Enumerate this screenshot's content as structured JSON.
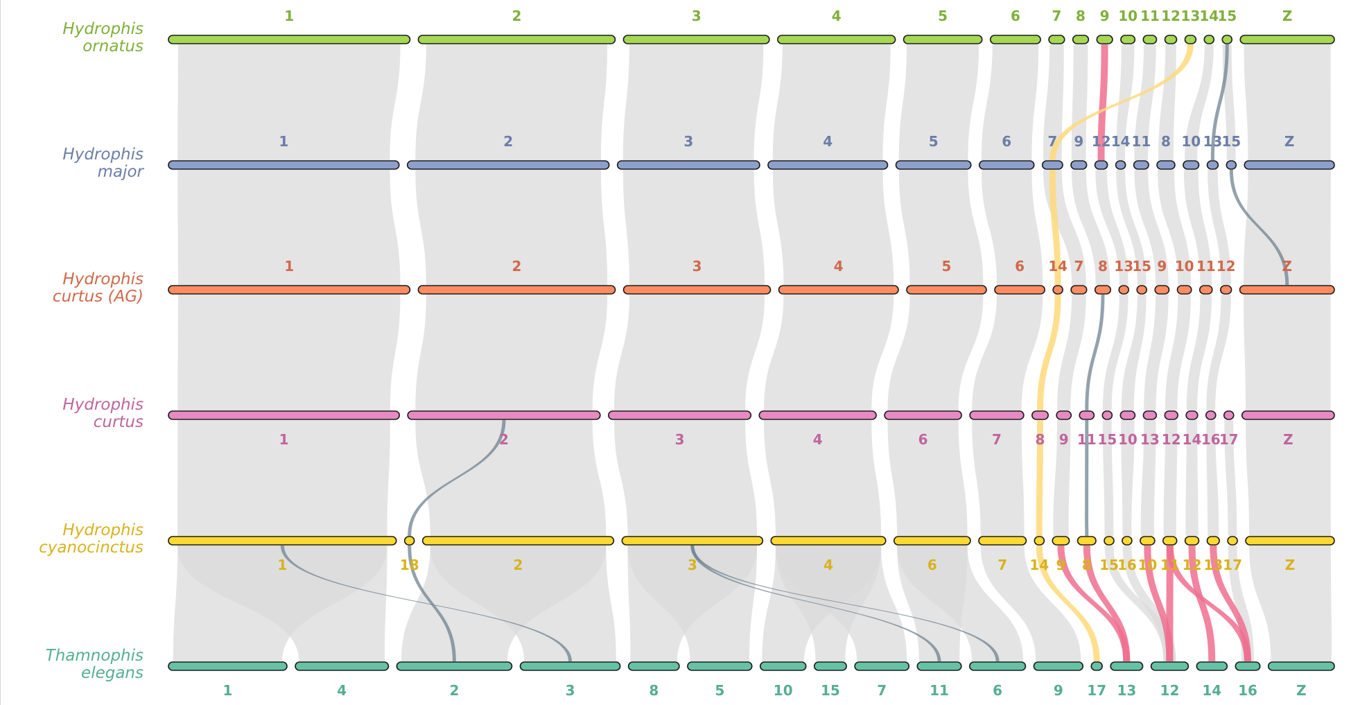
{
  "tracks": [
    {
      "species_line1": "Hydrophis",
      "species_line2": "ornatus",
      "color": "#a6d854",
      "label_color": "#7fb03a",
      "label_pos": "above",
      "chromosomes": [
        {
          "label": "1",
          "length": 30.8,
          "ctr": 0.5
        },
        {
          "label": "2",
          "length": 25.1,
          "ctr": 0.5
        },
        {
          "label": "3",
          "length": 18.6,
          "ctr": 0.5
        },
        {
          "label": "4",
          "length": 15.0,
          "ctr": 0.5
        },
        {
          "label": "5",
          "length": 10.0,
          "ctr": 0.5
        },
        {
          "label": "6",
          "length": 6.4,
          "ctr": 0.5
        },
        {
          "label": "7",
          "length": 2.0,
          "ctr": 0.5
        },
        {
          "label": "8",
          "length": 2.0,
          "ctr": 0.5
        },
        {
          "label": "9",
          "length": 2.0,
          "ctr": 0.5
        },
        {
          "label": "10",
          "length": 1.8,
          "ctr": 0.5
        },
        {
          "label": "11",
          "length": 1.7,
          "ctr": 0.5
        },
        {
          "label": "12",
          "length": 1.5,
          "ctr": 0.5
        },
        {
          "label": "13",
          "length": 1.4,
          "ctr": 0.5
        },
        {
          "label": "14",
          "length": 1.2,
          "ctr": 0.5
        },
        {
          "label": "15",
          "length": 1.1,
          "ctr": 0.5
        },
        {
          "label": "Z",
          "length": 12.0,
          "ctr": 0.5
        }
      ]
    },
    {
      "species_line1": "Hydrophis",
      "species_line2": "major",
      "color": "#8da0cb",
      "label_color": "#6b7ea8",
      "label_pos": "above",
      "chromosomes": [
        {
          "label": "1",
          "length": 29.5,
          "ctr": 0.5
        },
        {
          "label": "2",
          "length": 25.8,
          "ctr": 0.5
        },
        {
          "label": "3",
          "length": 18.2,
          "ctr": 0.5
        },
        {
          "label": "4",
          "length": 15.3,
          "ctr": 0.5
        },
        {
          "label": "5",
          "length": 9.6,
          "ctr": 0.5
        },
        {
          "label": "6",
          "length": 7.0,
          "ctr": 0.5
        },
        {
          "label": "7",
          "length": 2.6,
          "ctr": 0.5
        },
        {
          "label": "9",
          "length": 2.0,
          "ctr": 0.5
        },
        {
          "label": "12",
          "length": 1.6,
          "ctr": 0.5
        },
        {
          "label": "14",
          "length": 1.2,
          "ctr": 0.5
        },
        {
          "label": "11",
          "length": 1.9,
          "ctr": 0.5
        },
        {
          "label": "8",
          "length": 2.3,
          "ctr": 0.5
        },
        {
          "label": "10",
          "length": 2.0,
          "ctr": 0.5
        },
        {
          "label": "13",
          "length": 1.4,
          "ctr": 0.5
        },
        {
          "label": "15",
          "length": 1.2,
          "ctr": 0.5
        },
        {
          "label": "Z",
          "length": 11.5,
          "ctr": 0.5
        }
      ]
    },
    {
      "species_line1": "Hydrophis",
      "species_line2": "curtus (AG)",
      "color": "#fc8d62",
      "label_color": "#d0694a",
      "label_pos": "above",
      "chromosomes": [
        {
          "label": "1",
          "length": 30.9,
          "ctr": 0.5
        },
        {
          "label": "2",
          "length": 25.2,
          "ctr": 0.5
        },
        {
          "label": "3",
          "length": 18.8,
          "ctr": 0.5
        },
        {
          "label": "4",
          "length": 15.3,
          "ctr": 0.5
        },
        {
          "label": "5",
          "length": 10.2,
          "ctr": 0.5
        },
        {
          "label": "6",
          "length": 6.4,
          "ctr": 0.5
        },
        {
          "label": "14",
          "length": 1.2,
          "ctr": 0.5
        },
        {
          "label": "7",
          "length": 2.0,
          "ctr": 0.5
        },
        {
          "label": "8",
          "length": 2.0,
          "ctr": 0.5
        },
        {
          "label": "13",
          "length": 1.2,
          "ctr": 0.5
        },
        {
          "label": "15",
          "length": 1.2,
          "ctr": 0.5
        },
        {
          "label": "9",
          "length": 1.8,
          "ctr": 0.5
        },
        {
          "label": "10",
          "length": 1.8,
          "ctr": 0.5
        },
        {
          "label": "11",
          "length": 1.6,
          "ctr": 0.5
        },
        {
          "label": "12",
          "length": 1.4,
          "ctr": 0.5
        },
        {
          "label": "Z",
          "length": 12.1,
          "ctr": 0.5
        }
      ]
    },
    {
      "species_line1": "Hydrophis",
      "species_line2": "curtus",
      "color": "#e78ac3",
      "label_color": "#c0649d",
      "label_pos": "below",
      "chromosomes": [
        {
          "label": "1",
          "length": 30.0,
          "ctr": 0.5
        },
        {
          "label": "2",
          "length": 25.0,
          "ctr": 0.5
        },
        {
          "label": "3",
          "length": 18.5,
          "ctr": 0.5
        },
        {
          "label": "4",
          "length": 15.2,
          "ctr": 0.5
        },
        {
          "label": "6",
          "length": 10.0,
          "ctr": 0.5
        },
        {
          "label": "7",
          "length": 7.0,
          "ctr": 0.5
        },
        {
          "label": "8",
          "length": 2.1,
          "ctr": 0.5
        },
        {
          "label": "9",
          "length": 1.9,
          "ctr": 0.5
        },
        {
          "label": "11",
          "length": 1.9,
          "ctr": 0.5
        },
        {
          "label": "15",
          "length": 1.2,
          "ctr": 0.5
        },
        {
          "label": "10",
          "length": 1.9,
          "ctr": 0.5
        },
        {
          "label": "13",
          "length": 1.7,
          "ctr": 0.5
        },
        {
          "label": "12",
          "length": 1.7,
          "ctr": 0.5
        },
        {
          "label": "14",
          "length": 1.5,
          "ctr": 0.5
        },
        {
          "label": "16",
          "length": 1.2,
          "ctr": 0.5
        },
        {
          "label": "17",
          "length": 1.2,
          "ctr": 0.5
        },
        {
          "label": "Z",
          "length": 12.0,
          "ctr": 0.5
        }
      ]
    },
    {
      "species_line1": "Hydrophis",
      "species_line2": "cyanocinctus",
      "color": "#ffd92f",
      "label_color": "#d9b21c",
      "label_pos": "below",
      "chromosomes": [
        {
          "label": "1",
          "length": 29.8,
          "ctr": 0.5
        },
        {
          "label": "18",
          "length": 1.2,
          "ctr": 0.5
        },
        {
          "label": "2",
          "length": 25.0,
          "ctr": 0.5
        },
        {
          "label": "3",
          "length": 18.4,
          "ctr": 0.5
        },
        {
          "label": "4",
          "length": 15.0,
          "ctr": 0.5
        },
        {
          "label": "6",
          "length": 10.0,
          "ctr": 0.5
        },
        {
          "label": "7",
          "length": 6.2,
          "ctr": 0.5
        },
        {
          "label": "14",
          "length": 1.2,
          "ctr": 0.5
        },
        {
          "label": "9",
          "length": 2.2,
          "ctr": 0.5
        },
        {
          "label": "8",
          "length": 2.4,
          "ctr": 0.5
        },
        {
          "label": "15",
          "length": 1.2,
          "ctr": 0.5
        },
        {
          "label": "16",
          "length": 1.2,
          "ctr": 0.5
        },
        {
          "label": "10",
          "length": 1.9,
          "ctr": 0.5
        },
        {
          "label": "11",
          "length": 1.8,
          "ctr": 0.5
        },
        {
          "label": "12",
          "length": 1.8,
          "ctr": 0.5
        },
        {
          "label": "13",
          "length": 1.6,
          "ctr": 0.5
        },
        {
          "label": "17",
          "length": 1.2,
          "ctr": 0.5
        },
        {
          "label": "Z",
          "length": 11.6,
          "ctr": 0.5
        }
      ]
    },
    {
      "species_line1": "Thamnophis",
      "species_line2": "elegans",
      "color": "#66c2a5",
      "label_color": "#55ae92",
      "label_pos": "below",
      "chromosomes": [
        {
          "label": "1",
          "length": 14.0,
          "ctr": 0.5
        },
        {
          "label": "4",
          "length": 11.0,
          "ctr": 0.5
        },
        {
          "label": "2",
          "length": 13.6,
          "ctr": 0.5
        },
        {
          "label": "3",
          "length": 11.8,
          "ctr": 0.5
        },
        {
          "label": "8",
          "length": 6.0,
          "ctr": 0.5
        },
        {
          "label": "5",
          "length": 7.6,
          "ctr": 0.5
        },
        {
          "label": "10",
          "length": 5.4,
          "ctr": 0.5
        },
        {
          "label": "15",
          "length": 3.8,
          "ctr": 0.5
        },
        {
          "label": "7",
          "length": 6.4,
          "ctr": 0.5
        },
        {
          "label": "11",
          "length": 5.2,
          "ctr": 0.5
        },
        {
          "label": "6",
          "length": 6.6,
          "ctr": 0.5
        },
        {
          "label": "9",
          "length": 5.8,
          "ctr": 0.5
        },
        {
          "label": "17",
          "length": 1.3,
          "ctr": 0.5
        },
        {
          "label": "13",
          "length": 3.8,
          "ctr": 0.5
        },
        {
          "label": "12",
          "length": 4.4,
          "ctr": 0.5
        },
        {
          "label": "14",
          "length": 3.6,
          "ctr": 0.5
        },
        {
          "label": "16",
          "length": 2.9,
          "ctr": 0.5
        },
        {
          "label": "Z",
          "length": 7.8,
          "ctr": 0.5
        }
      ]
    }
  ],
  "highlight_colors": {
    "background": "#d9d9d9",
    "fusion": "#f4a6b4",
    "pink": "#ef6f8e",
    "yellow": "#ffd97a",
    "gray": "#6f8391"
  },
  "links": [
    {
      "t": 0,
      "a": "1",
      "b": "1",
      "c": "bg"
    },
    {
      "t": 0,
      "a": "2",
      "b": "2",
      "c": "bg"
    },
    {
      "t": 0,
      "a": "3",
      "b": "3",
      "c": "bg"
    },
    {
      "t": 0,
      "a": "4",
      "b": "4",
      "c": "bg"
    },
    {
      "t": 0,
      "a": "5",
      "b": "5",
      "c": "bg"
    },
    {
      "t": 0,
      "a": "6",
      "b": "6",
      "c": "bg"
    },
    {
      "t": 0,
      "a": "7",
      "b": "7",
      "c": "bg"
    },
    {
      "t": 0,
      "a": "8",
      "b": "9",
      "c": "bg"
    },
    {
      "t": 0,
      "a": "9",
      "b": "12",
      "c": "pink"
    },
    {
      "t": 0,
      "a": "10",
      "b": "14",
      "c": "bg"
    },
    {
      "t": 0,
      "a": "11",
      "b": "11",
      "c": "bg"
    },
    {
      "t": 0,
      "a": "12",
      "b": "8",
      "c": "bg"
    },
    {
      "t": 0,
      "a": "13",
      "b": "7",
      "c": "yellow"
    },
    {
      "t": 0,
      "a": "14",
      "b": "10",
      "c": "bg"
    },
    {
      "t": 0,
      "a": "15",
      "b": "13",
      "c": "gray"
    },
    {
      "t": 0,
      "a": "15",
      "b": "15",
      "c": "bg"
    },
    {
      "t": 0,
      "a": "Z",
      "b": "Z",
      "c": "bg"
    },
    {
      "t": 1,
      "a": "1",
      "b": "1",
      "c": "bg"
    },
    {
      "t": 1,
      "a": "2",
      "b": "2",
      "c": "bg"
    },
    {
      "t": 1,
      "a": "3",
      "b": "3",
      "c": "bg"
    },
    {
      "t": 1,
      "a": "4",
      "b": "4",
      "c": "bg"
    },
    {
      "t": 1,
      "a": "5",
      "b": "5",
      "c": "bg"
    },
    {
      "t": 1,
      "a": "6",
      "b": "6",
      "c": "bg"
    },
    {
      "t": 1,
      "a": "7",
      "b": "14",
      "c": "yellow"
    },
    {
      "t": 1,
      "a": "7",
      "b": "7",
      "c": "bg"
    },
    {
      "t": 1,
      "a": "9",
      "b": "8",
      "c": "bg"
    },
    {
      "t": 1,
      "a": "12",
      "b": "13",
      "c": "bg"
    },
    {
      "t": 1,
      "a": "14",
      "b": "15",
      "c": "bg"
    },
    {
      "t": 1,
      "a": "11",
      "b": "9",
      "c": "bg"
    },
    {
      "t": 1,
      "a": "8",
      "b": "10",
      "c": "bg"
    },
    {
      "t": 1,
      "a": "10",
      "b": "11",
      "c": "bg"
    },
    {
      "t": 1,
      "a": "13",
      "b": "12",
      "c": "bg"
    },
    {
      "t": 1,
      "a": "15",
      "b": "Z",
      "c": "gray"
    },
    {
      "t": 1,
      "a": "Z",
      "b": "Z",
      "c": "bg"
    },
    {
      "t": 2,
      "a": "1",
      "b": "1",
      "c": "bg"
    },
    {
      "t": 2,
      "a": "2",
      "b": "2",
      "c": "bg"
    },
    {
      "t": 2,
      "a": "3",
      "b": "3",
      "c": "bg"
    },
    {
      "t": 2,
      "a": "4",
      "b": "4",
      "c": "bg"
    },
    {
      "t": 2,
      "a": "5",
      "b": "6",
      "c": "bg"
    },
    {
      "t": 2,
      "a": "6",
      "b": "7",
      "c": "bg"
    },
    {
      "t": 2,
      "a": "14",
      "b": "8",
      "c": "yellow"
    },
    {
      "t": 2,
      "a": "7",
      "b": "9",
      "c": "bg"
    },
    {
      "t": 2,
      "a": "8",
      "b": "11",
      "c": "gray"
    },
    {
      "t": 2,
      "a": "13",
      "b": "15",
      "c": "bg"
    },
    {
      "t": 2,
      "a": "15",
      "b": "10",
      "c": "bg"
    },
    {
      "t": 2,
      "a": "9",
      "b": "13",
      "c": "bg"
    },
    {
      "t": 2,
      "a": "10",
      "b": "12",
      "c": "bg"
    },
    {
      "t": 2,
      "a": "11",
      "b": "14",
      "c": "bg"
    },
    {
      "t": 2,
      "a": "12",
      "b": "16",
      "c": "bg"
    },
    {
      "t": 2,
      "a": "Z",
      "b": "Z",
      "c": "bg"
    },
    {
      "t": 3,
      "a": "1",
      "b": "1",
      "c": "bg"
    },
    {
      "t": 3,
      "a": "2",
      "b": "2",
      "c": "bg"
    },
    {
      "t": 3,
      "a": "2",
      "b": "18",
      "c": "gray"
    },
    {
      "t": 3,
      "a": "3",
      "b": "3",
      "c": "bg"
    },
    {
      "t": 3,
      "a": "4",
      "b": "4",
      "c": "bg"
    },
    {
      "t": 3,
      "a": "6",
      "b": "6",
      "c": "bg"
    },
    {
      "t": 3,
      "a": "7",
      "b": "7",
      "c": "bg"
    },
    {
      "t": 3,
      "a": "8",
      "b": "14",
      "c": "yellow"
    },
    {
      "t": 3,
      "a": "9",
      "b": "9",
      "c": "bg"
    },
    {
      "t": 3,
      "a": "11",
      "b": "8",
      "c": "gray"
    },
    {
      "t": 3,
      "a": "15",
      "b": "15",
      "c": "bg"
    },
    {
      "t": 3,
      "a": "10",
      "b": "16",
      "c": "bg"
    },
    {
      "t": 3,
      "a": "13",
      "b": "10",
      "c": "bg"
    },
    {
      "t": 3,
      "a": "12",
      "b": "11",
      "c": "bg"
    },
    {
      "t": 3,
      "a": "14",
      "b": "12",
      "c": "bg"
    },
    {
      "t": 3,
      "a": "16",
      "b": "13",
      "c": "bg"
    },
    {
      "t": 3,
      "a": "17",
      "b": "17",
      "c": "bg"
    },
    {
      "t": 3,
      "a": "Z",
      "b": "Z",
      "c": "bg"
    },
    {
      "t": 4,
      "a": "1",
      "b": "1",
      "c": "bg"
    },
    {
      "t": 4,
      "a": "1",
      "b": "3",
      "c": "gray"
    },
    {
      "t": 4,
      "a": "1",
      "b": "4",
      "c": "bg"
    },
    {
      "t": 4,
      "a": "18",
      "b": "2",
      "c": "gray"
    },
    {
      "t": 4,
      "a": "2",
      "b": "2",
      "c": "bg"
    },
    {
      "t": 4,
      "a": "2",
      "b": "3",
      "c": "bg"
    },
    {
      "t": 4,
      "a": "3",
      "b": "8",
      "c": "bg"
    },
    {
      "t": 4,
      "a": "3",
      "b": "5",
      "c": "bg"
    },
    {
      "t": 4,
      "a": "3",
      "b": "11",
      "c": "gray"
    },
    {
      "t": 4,
      "a": "3",
      "b": "6",
      "c": "gray"
    },
    {
      "t": 4,
      "a": "4",
      "b": "10",
      "c": "bg"
    },
    {
      "t": 4,
      "a": "4",
      "b": "15",
      "c": "bg"
    },
    {
      "t": 4,
      "a": "4",
      "b": "7",
      "c": "bg"
    },
    {
      "t": 4,
      "a": "6",
      "b": "11",
      "c": "bg"
    },
    {
      "t": 4,
      "a": "6",
      "b": "6",
      "c": "bg"
    },
    {
      "t": 4,
      "a": "7",
      "b": "9",
      "c": "bg"
    },
    {
      "t": 4,
      "a": "14",
      "b": "17",
      "c": "yellow"
    },
    {
      "t": 4,
      "a": "9",
      "b": "13",
      "c": "pink"
    },
    {
      "t": 4,
      "a": "8",
      "b": "13",
      "c": "pink"
    },
    {
      "t": 4,
      "a": "15",
      "b": "12",
      "c": "bg"
    },
    {
      "t": 4,
      "a": "16",
      "b": "12",
      "c": "bg"
    },
    {
      "t": 4,
      "a": "10",
      "b": "12",
      "c": "pink"
    },
    {
      "t": 4,
      "a": "11",
      "b": "12",
      "c": "pink"
    },
    {
      "t": 4,
      "a": "12",
      "b": "14",
      "c": "pink"
    },
    {
      "t": 4,
      "a": "13",
      "b": "16",
      "c": "pink"
    },
    {
      "t": 4,
      "a": "11",
      "b": "16",
      "c": "pink"
    },
    {
      "t": 4,
      "a": "17",
      "b": "16",
      "c": "bg"
    },
    {
      "t": 4,
      "a": "Z",
      "b": "Z",
      "c": "bg"
    }
  ]
}
